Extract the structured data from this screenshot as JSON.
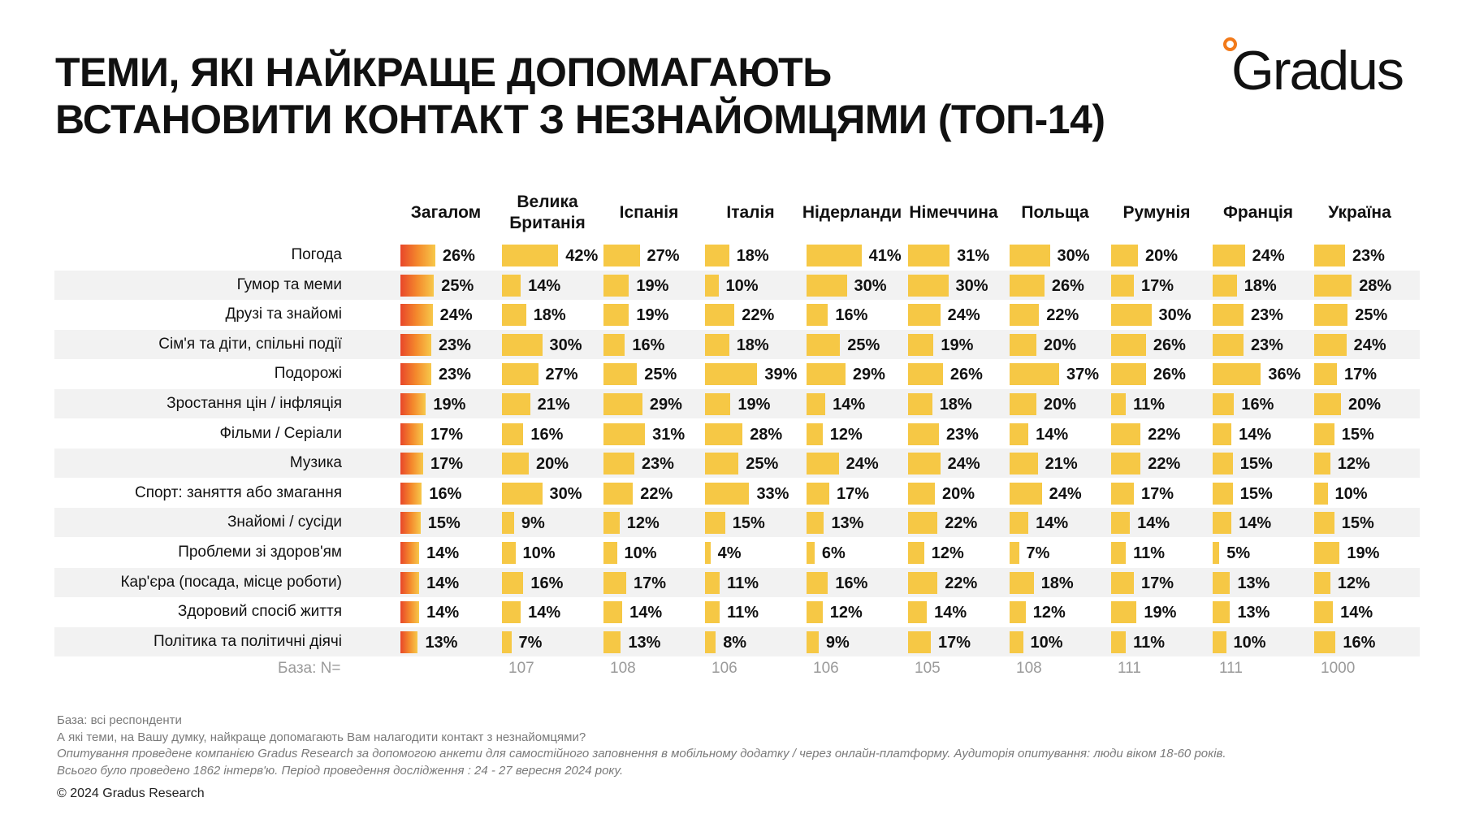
{
  "title_lines": [
    "ТЕМИ, ЯКІ НАЙКРАЩЕ ДОПОМАГАЮТЬ",
    "ВСТАНОВИТИ КОНТАКТ З НЕЗНАЙОМЦЯМИ (ТОП-14)"
  ],
  "logo": "Gradus",
  "colors": {
    "bar": "#f6c845",
    "total_gradient_start": "#e8462a",
    "total_gradient_end": "#f7c84a"
  },
  "chart_data": {
    "type": "bar",
    "columns": [
      "Загалом",
      "Велика Британія",
      "Іспанія",
      "Італія",
      "Нідерланди",
      "Німеччина",
      "Польща",
      "Румунія",
      "Франція",
      "Україна"
    ],
    "rows": [
      {
        "label": "Погода",
        "values": [
          26,
          42,
          27,
          18,
          41,
          31,
          30,
          20,
          24,
          23
        ]
      },
      {
        "label": "Гумор та меми",
        "values": [
          25,
          14,
          19,
          10,
          30,
          30,
          26,
          17,
          18,
          28
        ]
      },
      {
        "label": "Друзі та знайомі",
        "values": [
          24,
          18,
          19,
          22,
          16,
          24,
          22,
          30,
          23,
          25
        ]
      },
      {
        "label": "Сім'я та діти, спільні події",
        "values": [
          23,
          30,
          16,
          18,
          25,
          19,
          20,
          26,
          23,
          24
        ]
      },
      {
        "label": "Подорожі",
        "values": [
          23,
          27,
          25,
          39,
          29,
          26,
          37,
          26,
          36,
          17
        ]
      },
      {
        "label": "Зростання цін / інфляція",
        "values": [
          19,
          21,
          29,
          19,
          14,
          18,
          20,
          11,
          16,
          20
        ]
      },
      {
        "label": "Фільми / Серіали",
        "values": [
          17,
          16,
          31,
          28,
          12,
          23,
          14,
          22,
          14,
          15
        ]
      },
      {
        "label": "Музика",
        "values": [
          17,
          20,
          23,
          25,
          24,
          24,
          21,
          22,
          15,
          12
        ]
      },
      {
        "label": "Спорт: заняття або змагання",
        "values": [
          16,
          30,
          22,
          33,
          17,
          20,
          24,
          17,
          15,
          10
        ]
      },
      {
        "label": "Знайомі / сусіди",
        "values": [
          15,
          9,
          12,
          15,
          13,
          22,
          14,
          14,
          14,
          15
        ]
      },
      {
        "label": "Проблеми зі здоров'ям",
        "values": [
          14,
          10,
          10,
          4,
          6,
          12,
          7,
          11,
          5,
          19
        ]
      },
      {
        "label": "Кар'єра (посада, місце роботи)",
        "values": [
          14,
          16,
          17,
          11,
          16,
          22,
          18,
          17,
          13,
          12
        ]
      },
      {
        "label": "Здоровий спосіб життя",
        "values": [
          14,
          14,
          14,
          11,
          12,
          14,
          12,
          19,
          13,
          14
        ]
      },
      {
        "label": "Політика та політичні діячі",
        "values": [
          13,
          7,
          13,
          8,
          9,
          17,
          10,
          11,
          10,
          16
        ]
      }
    ],
    "unit": "%",
    "base_label": "База: N=",
    "base_values": [
      "",
      "107",
      "108",
      "106",
      "106",
      "105",
      "108",
      "111",
      "111",
      "1000"
    ]
  },
  "footer": {
    "base": "База: всі респонденти",
    "question": "А які теми, на Вашу думку, найкраще допомагають Вам налагодити контакт з незнайомцями?",
    "method1": "Опитування проведене компанією Gradus Research за допомогою анкети для самостійного заповнення в мобільному додатку / через онлайн-платформу. Аудиторія опитування: люди віком 18-60 років.",
    "method2": "Всього було проведено 1862 інтерв'ю. Період проведення дослідження : 24 - 27 вересня 2024 року.",
    "copyright": "© 2024 Gradus Research"
  }
}
